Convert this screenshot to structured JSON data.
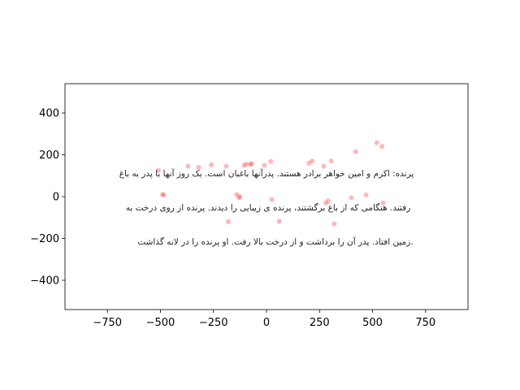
{
  "chart_data": {
    "type": "scatter",
    "title": "",
    "xlabel": "",
    "ylabel": "",
    "xlim": [
      -950,
      950
    ],
    "ylim": [
      -540,
      540
    ],
    "grid": false,
    "xticks": [
      -750,
      -500,
      -250,
      0,
      250,
      500,
      750
    ],
    "yticks": [
      -400,
      -200,
      0,
      200,
      400
    ],
    "point_color": "#ff6060",
    "annotation_lines": [
      "پرنده: اکرم و امین خواهر برادر هستند. پدرآنها باغبان است. یک روز آنها با پدر به باغ",
      "رفتند. هنگامی که از باغ برگشتند، پرنده ی زیبایی را دیدند. پرنده از روی درخت به",
      "زمین افتاد. پدر آن را برداشت و از درخت بالا رفت. او پرنده را در لانه گذاشت."
    ],
    "series": [
      {
        "x": [
          -510,
          -490,
          -485,
          -370,
          -320,
          -260,
          -190,
          -180,
          -140,
          -130,
          -125,
          -105,
          -95,
          -75,
          -70,
          -10,
          20,
          25,
          60,
          200,
          215,
          270,
          280,
          290,
          305,
          320,
          400,
          420,
          470,
          520,
          545,
          550
        ],
        "y": [
          125,
          10,
          8,
          145,
          140,
          152,
          145,
          -120,
          10,
          -5,
          0,
          150,
          155,
          155,
          157,
          150,
          168,
          -15,
          -118,
          160,
          170,
          145,
          -30,
          -20,
          170,
          -130,
          -5,
          215,
          8,
          258,
          240,
          -30
        ]
      }
    ]
  }
}
